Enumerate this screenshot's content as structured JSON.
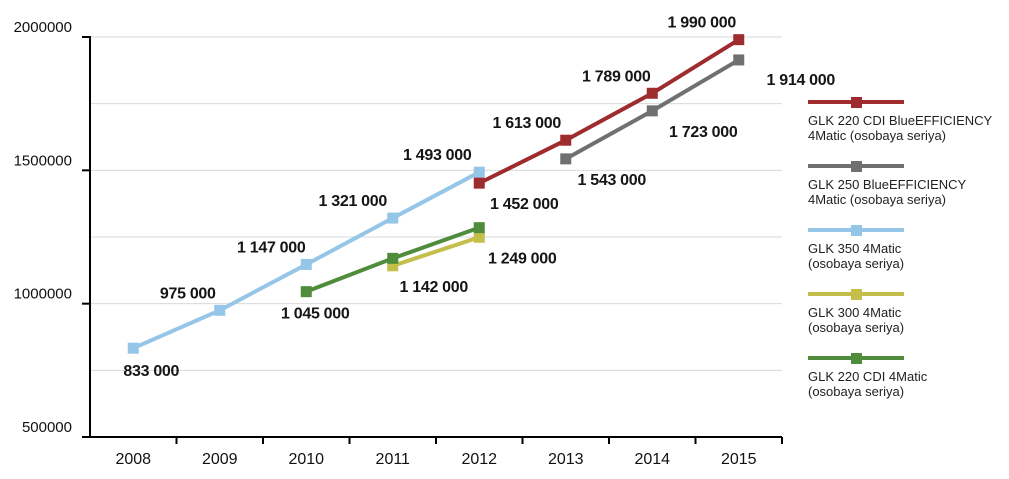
{
  "chart_data": {
    "type": "line",
    "title": "",
    "x_categories": [
      "2008",
      "2009",
      "2010",
      "2011",
      "2012",
      "2013",
      "2014",
      "2015"
    ],
    "y_axis": {
      "min": 500000,
      "max": 2000000,
      "grid_step": 250000,
      "ticks": [
        {
          "value": 2000000,
          "label": "2000000"
        },
        {
          "value": 1500000,
          "label": "1500000"
        },
        {
          "value": 1000000,
          "label": "1000000"
        },
        {
          "value": 500000,
          "label": "500000"
        }
      ]
    },
    "draw_order": [
      2,
      3,
      4,
      1,
      0
    ],
    "series": [
      {
        "name": "GLK 220 CDI BlueEFFICIENCY 4Matic (osobaya seriya)",
        "color": "#9e2b2e",
        "points": [
          {
            "x": "2012",
            "y": 1452000,
            "label": "1 452 000",
            "label_dx": 45,
            "label_dy": 26
          },
          {
            "x": "2013",
            "y": 1613000,
            "label": "1 613 000",
            "label_dx": -39,
            "label_dy": -12
          },
          {
            "x": "2014",
            "y": 1789000,
            "label": "1 789 000",
            "label_dx": -36,
            "label_dy": -12
          },
          {
            "x": "2015",
            "y": 1990000,
            "label": "1 990 000",
            "label_dx": -37,
            "label_dy": -12
          }
        ]
      },
      {
        "name": "GLK 250 BlueEFFICIENCY 4Matic (osobaya seriya)",
        "color": "#707070",
        "points": [
          {
            "x": "2013",
            "y": 1543000,
            "label": "1 543 000",
            "label_dx": 46,
            "label_dy": 26
          },
          {
            "x": "2014",
            "y": 1723000,
            "label": "1 723 000",
            "label_dx": 51,
            "label_dy": 26
          },
          {
            "x": "2015",
            "y": 1914000,
            "label": "1 914 000",
            "label_dx": 62,
            "label_dy": 25
          }
        ]
      },
      {
        "name": "GLK 350 4Matic (osobaya seriya)",
        "color": "#95c6e8",
        "points": [
          {
            "x": "2008",
            "y": 833000,
            "label": "833 000",
            "label_dx": 18,
            "label_dy": 28
          },
          {
            "x": "2009",
            "y": 975000,
            "label": "975 000",
            "label_dx": -32,
            "label_dy": -12
          },
          {
            "x": "2010",
            "y": 1147000,
            "label": "1 147 000",
            "label_dx": -35,
            "label_dy": -12
          },
          {
            "x": "2011",
            "y": 1321000,
            "label": "1 321 000",
            "label_dx": -40,
            "label_dy": -12
          },
          {
            "x": "2012",
            "y": 1493000,
            "label": "1 493 000",
            "label_dx": -42,
            "label_dy": -12
          }
        ]
      },
      {
        "name": "GLK 300 4Matic (osobaya seriya)",
        "color": "#c4be4a",
        "points": [
          {
            "x": "2011",
            "y": 1142000,
            "label": "1 142 000",
            "label_dx": 41,
            "label_dy": 26
          },
          {
            "x": "2012",
            "y": 1249000,
            "label": "1 249 000",
            "label_dx": 43,
            "label_dy": 26
          }
        ]
      },
      {
        "name": "GLK 220 CDI 4Matic (osobaya seriya)",
        "color": "#4f8c3c",
        "points": [
          {
            "x": "2010",
            "y": 1045000,
            "label": "1 045 000",
            "label_dx": 9,
            "label_dy": 27
          },
          {
            "x": "2011",
            "y": 1170000,
            "label": "",
            "label_dx": 0,
            "label_dy": 0
          },
          {
            "x": "2012",
            "y": 1285000,
            "label": "",
            "label_dx": 0,
            "label_dy": 0
          }
        ]
      }
    ],
    "legend": {
      "position": "right",
      "items": [
        {
          "lines": [
            "GLK 220 CDI BlueEFFICIENCY",
            "4Matic (osobaya seriya)"
          ],
          "color": "#9e2b2e"
        },
        {
          "lines": [
            "GLK 250 BlueEFFICIENCY",
            "4Matic (osobaya seriya)"
          ],
          "color": "#707070"
        },
        {
          "lines": [
            "GLK 350 4Matic",
            "(osobaya seriya)"
          ],
          "color": "#95c6e8"
        },
        {
          "lines": [
            "GLK 300 4Matic",
            "(osobaya seriya)"
          ],
          "color": "#c4be4a"
        },
        {
          "lines": [
            "GLK 220 CDI 4Matic",
            "(osobaya seriya)"
          ],
          "color": "#4f8c3c"
        }
      ]
    }
  }
}
